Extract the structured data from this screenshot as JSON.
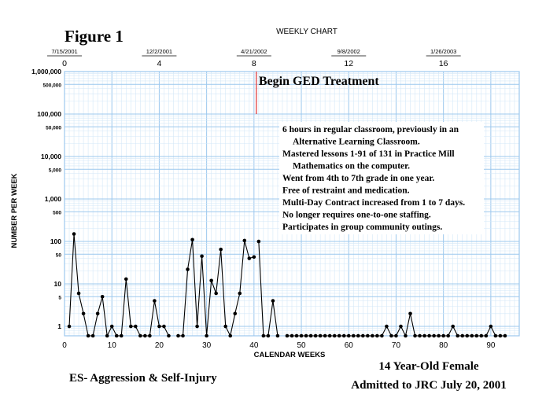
{
  "figure_label": "Figure 1",
  "chart_data": {
    "type": "line",
    "title": "WEEKLY CHART",
    "xlabel": "CALENDAR WEEKS",
    "ylabel": "NUMBER PER WEEK",
    "y_scale": "log",
    "ylim": [
      0.6,
      1000000
    ],
    "xlim": [
      0,
      96
    ],
    "grid": true,
    "x_ticks": [
      0,
      10,
      20,
      30,
      40,
      50,
      60,
      70,
      80,
      90
    ],
    "y_ticks": [
      {
        "value": 1,
        "label": "1"
      },
      {
        "value": 5,
        "label": "5"
      },
      {
        "value": 10,
        "label": "10"
      },
      {
        "value": 50,
        "label": "50"
      },
      {
        "value": 100,
        "label": "100"
      },
      {
        "value": 500,
        "label": "500"
      },
      {
        "value": 1000,
        "label": "1,000"
      },
      {
        "value": 5000,
        "label": "5,000"
      },
      {
        "value": 10000,
        "label": "10,000"
      },
      {
        "value": 50000,
        "label": "50,000"
      },
      {
        "value": 100000,
        "label": "100,000"
      },
      {
        "value": 500000,
        "label": "500,000"
      },
      {
        "value": 1000000,
        "label": "1,000,000"
      }
    ],
    "top_axis": [
      {
        "week": 0,
        "date": "7/15/2001",
        "label": "0"
      },
      {
        "week": 20,
        "date": "12/2/2001",
        "label": "4"
      },
      {
        "week": 40,
        "date": "4/21/2002",
        "label": "8"
      },
      {
        "week": 60,
        "date": "9/8/2002",
        "label": "12"
      },
      {
        "week": 80,
        "date": "1/26/2003",
        "label": "16"
      }
    ],
    "phase_line": {
      "x": 40.5,
      "label": "Begin GED Treatment",
      "color": "#e03030"
    },
    "series": [
      {
        "color": "#000000",
        "segments": [
          [
            [
              1,
              1
            ],
            [
              2,
              150
            ],
            [
              3,
              6
            ],
            [
              4,
              2
            ],
            [
              5,
              0.6
            ],
            [
              6,
              0.6
            ],
            [
              7,
              2
            ],
            [
              8,
              5
            ],
            [
              9,
              0.6
            ],
            [
              10,
              1
            ],
            [
              11,
              0.6
            ],
            [
              12,
              0.6
            ],
            [
              13,
              13
            ],
            [
              14,
              1
            ],
            [
              15,
              1
            ],
            [
              16,
              0.6
            ],
            [
              17,
              0.6
            ],
            [
              18,
              0.6
            ],
            [
              19,
              4
            ],
            [
              20,
              1
            ],
            [
              21,
              1
            ],
            [
              22,
              0.6
            ]
          ],
          [
            [
              24,
              0.6
            ],
            [
              25,
              0.6
            ],
            [
              26,
              22
            ],
            [
              27,
              110
            ],
            [
              28,
              1
            ],
            [
              29,
              45
            ],
            [
              30,
              0.6
            ],
            [
              31,
              12
            ],
            [
              32,
              6
            ],
            [
              33,
              65
            ],
            [
              34,
              1
            ],
            [
              35,
              0.6
            ],
            [
              36,
              2
            ],
            [
              37,
              6
            ],
            [
              38,
              105
            ],
            [
              39,
              40
            ],
            [
              40,
              43
            ]
          ],
          [
            [
              41,
              100
            ],
            [
              42,
              0.6
            ],
            [
              43,
              0.6
            ],
            [
              44,
              4
            ],
            [
              45,
              0.6
            ]
          ],
          [
            [
              47,
              0.6
            ],
            [
              48,
              0.6
            ],
            [
              49,
              0.6
            ],
            [
              50,
              0.6
            ],
            [
              51,
              0.6
            ],
            [
              52,
              0.6
            ],
            [
              53,
              0.6
            ],
            [
              54,
              0.6
            ],
            [
              55,
              0.6
            ],
            [
              56,
              0.6
            ],
            [
              57,
              0.6
            ],
            [
              58,
              0.6
            ],
            [
              59,
              0.6
            ],
            [
              60,
              0.6
            ],
            [
              61,
              0.6
            ],
            [
              62,
              0.6
            ],
            [
              63,
              0.6
            ],
            [
              64,
              0.6
            ],
            [
              65,
              0.6
            ],
            [
              66,
              0.6
            ],
            [
              67,
              0.6
            ],
            [
              68,
              1
            ],
            [
              69,
              0.6
            ],
            [
              70,
              0.6
            ],
            [
              71,
              1
            ],
            [
              72,
              0.6
            ],
            [
              73,
              2
            ],
            [
              74,
              0.6
            ],
            [
              75,
              0.6
            ],
            [
              76,
              0.6
            ],
            [
              77,
              0.6
            ],
            [
              78,
              0.6
            ],
            [
              79,
              0.6
            ],
            [
              80,
              0.6
            ],
            [
              81,
              0.6
            ],
            [
              82,
              1
            ],
            [
              83,
              0.6
            ],
            [
              84,
              0.6
            ],
            [
              85,
              0.6
            ],
            [
              86,
              0.6
            ],
            [
              87,
              0.6
            ],
            [
              88,
              0.6
            ],
            [
              89,
              0.6
            ],
            [
              90,
              1
            ],
            [
              91,
              0.6
            ],
            [
              92,
              0.6
            ],
            [
              93,
              0.6
            ]
          ]
        ]
      }
    ],
    "annotation_lines": [
      "6 hours in regular classroom, previously in an",
      "Alternative Learning Classroom.",
      "Mastered lessons 1-91 of 131 in Practice Mill",
      "Mathematics on the computer.",
      "Went from 4th to 7th grade in one year.",
      "Free of restraint and medication.",
      "Multi-Day Contract increased from 1 to 7 days.",
      "No longer requires one-to-one staffing.",
      "Participates in group community outings."
    ]
  },
  "footer": {
    "left": "ES- Aggression & Self-Injury",
    "right_line1": "14 Year-Old Female",
    "right_line2": "Admitted to JRC July 20, 2001"
  },
  "colors": {
    "grid": "#9cc8ee",
    "grid_minor": "#d4e8f8",
    "phase": "#e03030"
  }
}
